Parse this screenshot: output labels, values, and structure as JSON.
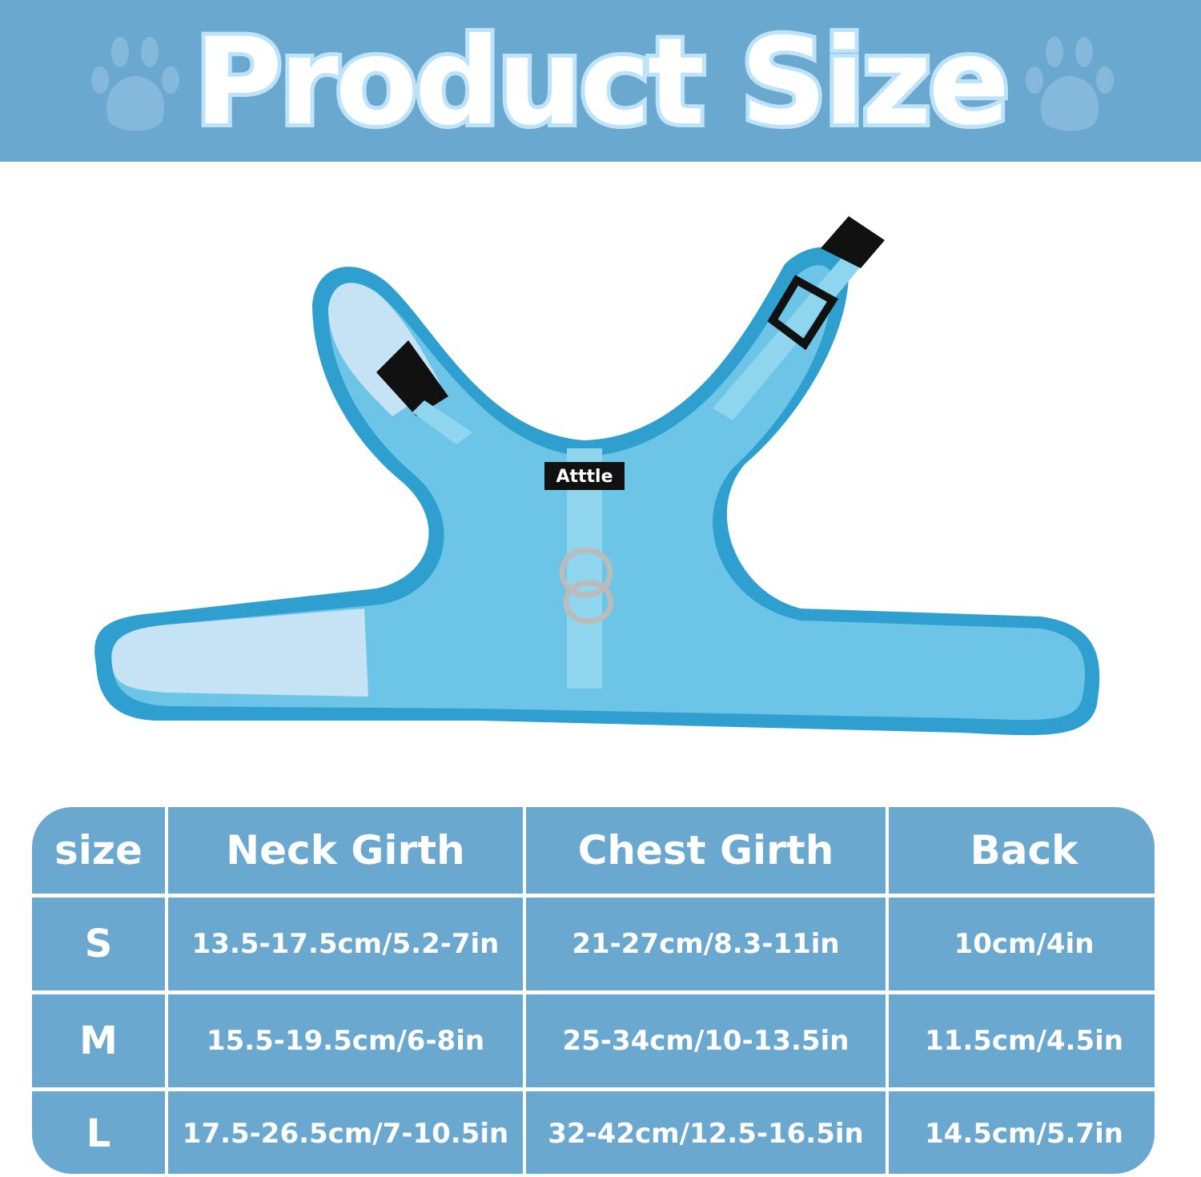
{
  "title": "Product Size",
  "colors": {
    "banner": "#6aa8cf",
    "table": "#6aa8cf",
    "harness": "#2f9fd0",
    "mesh": "#6cc4e6",
    "text": "#ffffff"
  },
  "product_label": "Atttle",
  "table": {
    "headers": [
      "size",
      "Neck Girth",
      "Chest Girth",
      "Back"
    ],
    "rows": [
      {
        "size": "S",
        "neck": "13.5-17.5cm/5.2-7in",
        "chest": "21-27cm/8.3-11in",
        "back": "10cm/4in"
      },
      {
        "size": "M",
        "neck": "15.5-19.5cm/6-8in",
        "chest": "25-34cm/10-13.5in",
        "back": "11.5cm/4.5in"
      },
      {
        "size": "L",
        "neck": "17.5-26.5cm/7-10.5in",
        "chest": "32-42cm/12.5-16.5in",
        "back": "14.5cm/5.7in"
      }
    ]
  }
}
